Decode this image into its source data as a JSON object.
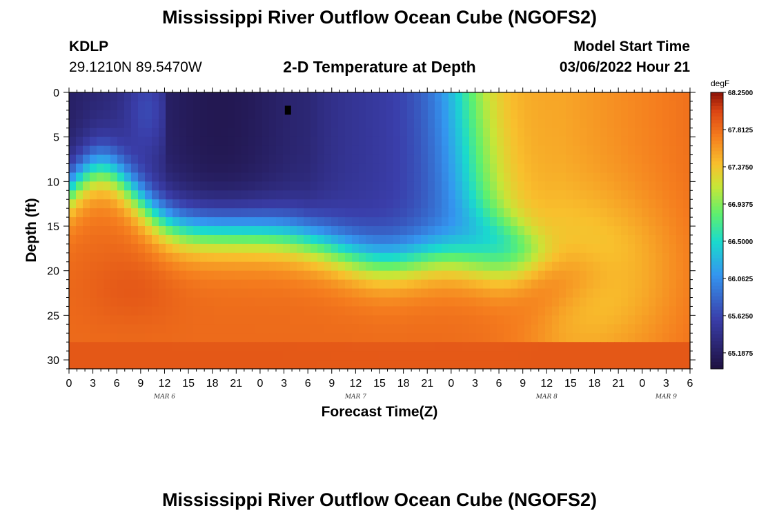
{
  "header": {
    "title": "Mississippi River Outflow Ocean Cube (NGOFS2)",
    "station": "KDLP",
    "coords": "29.1210N  89.5470W",
    "subtitle": "2-D Temperature at Depth",
    "model_start_label": "Model Start Time",
    "model_start_value": "03/06/2022 Hour 21"
  },
  "footer": {
    "title": "Mississippi River Outflow Ocean Cube (NGOFS2)"
  },
  "chart_data": {
    "type": "heatmap",
    "title": "2-D Temperature at Depth",
    "xlabel": "Forecast Time(Z)",
    "ylabel": "Depth (ft)",
    "x_tick_labels": [
      "0",
      "3",
      "6",
      "9",
      "12",
      "15",
      "18",
      "21",
      "0",
      "3",
      "6",
      "9",
      "12",
      "15",
      "18",
      "21",
      "0",
      "3",
      "6",
      "9",
      "12",
      "15",
      "18",
      "21",
      "0",
      "3",
      "6"
    ],
    "x_hours": [
      0,
      3,
      6,
      9,
      12,
      15,
      18,
      21,
      24,
      27,
      30,
      33,
      36,
      39,
      42,
      45,
      48,
      51,
      54,
      57,
      60,
      63,
      66,
      69,
      72,
      75,
      78
    ],
    "date_labels": [
      {
        "label": "MAR 6",
        "hour": 12
      },
      {
        "label": "MAR 7",
        "hour": 36
      },
      {
        "label": "MAR 8",
        "hour": 60
      },
      {
        "label": "MAR 9",
        "hour": 75
      }
    ],
    "xlim": [
      0,
      78
    ],
    "y_tick_labels": [
      "0",
      "5",
      "10",
      "15",
      "20",
      "25",
      "30"
    ],
    "y_ticks": [
      0,
      5,
      10,
      15,
      20,
      25,
      30
    ],
    "ylim": [
      0,
      31
    ],
    "colorbar": {
      "unit": "degF",
      "min": 65.0,
      "max": 68.25,
      "tick_values": [
        68.25,
        67.8125,
        67.375,
        66.9375,
        66.5,
        66.0625,
        65.625,
        65.1875
      ],
      "tick_labels": [
        "68.2500",
        "67.8125",
        "67.3750",
        "66.9375",
        "66.5000",
        "66.0625",
        "65.6250",
        "65.1875"
      ]
    },
    "marker": {
      "hour": 27.5,
      "depth": 2
    },
    "grid": false
  }
}
